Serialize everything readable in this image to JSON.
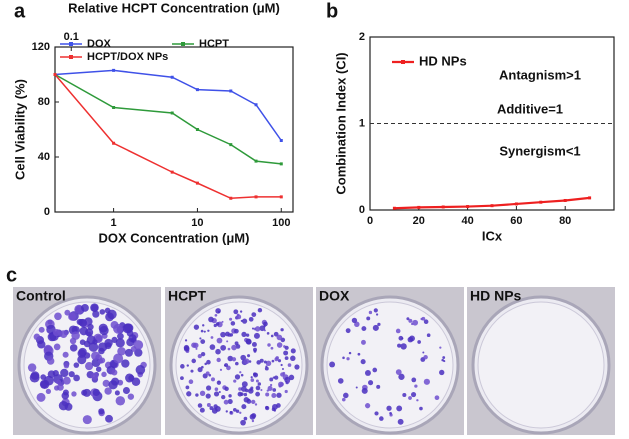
{
  "chart_data": [
    {
      "type": "line",
      "panel": "a",
      "xlabel": "DOX Concentration (μM)",
      "ylabel": "Cell Viability (%)",
      "x2label": "Relative HCPT Concentration (μM)",
      "x": [
        0.2,
        1,
        5,
        10,
        25,
        50,
        100
      ],
      "xscale": "log",
      "xlim": [
        0.2,
        138
      ],
      "xticks": [
        1,
        10,
        100
      ],
      "x2lim": [
        0.064,
        44
      ],
      "x2ticks": [
        0.1
      ],
      "ylim": [
        0,
        120
      ],
      "yticks": [
        0,
        40,
        80,
        120
      ],
      "legend": "upper left",
      "series": [
        {
          "name": "DOX",
          "color": "#3f51e8",
          "values": [
            100,
            103,
            98,
            89,
            88,
            78,
            52
          ]
        },
        {
          "name": "HCPT",
          "color": "#2e9a3a",
          "values": [
            100,
            76,
            72,
            60,
            49,
            37,
            35
          ]
        },
        {
          "name": "HCPT/DOX NPs",
          "color": "#ee3030",
          "values": [
            100,
            50,
            29,
            21,
            10,
            11,
            11
          ]
        }
      ]
    },
    {
      "type": "line",
      "panel": "b",
      "xlabel": "ICx",
      "ylabel": "Combination Index (CI)",
      "x": [
        10,
        20,
        30,
        40,
        50,
        60,
        70,
        80,
        90
      ],
      "xlim": [
        0,
        100
      ],
      "xticks": [
        0,
        20,
        40,
        60,
        80
      ],
      "ylim": [
        0,
        2
      ],
      "yticks": [
        0,
        1,
        2
      ],
      "reference_line": 1,
      "annotations": [
        "Antagnism>1",
        "Additive=1",
        "Synergism<1"
      ],
      "legend": "upper left",
      "series": [
        {
          "name": "HD NPs",
          "color": "#ee2020",
          "values": [
            0.02,
            0.03,
            0.035,
            0.04,
            0.05,
            0.07,
            0.09,
            0.11,
            0.14
          ]
        }
      ]
    }
  ],
  "photo_panel": {
    "panel": "c",
    "photos": [
      "Control",
      "HCPT",
      "DOX",
      "HD NPs"
    ]
  }
}
